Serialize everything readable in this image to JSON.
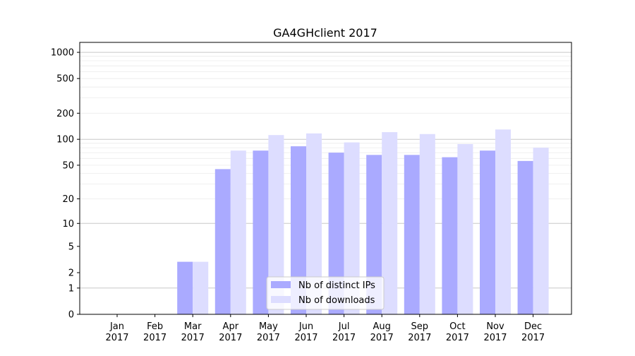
{
  "chart_data": {
    "type": "bar",
    "title": "GA4GHclient 2017",
    "xlabel": "",
    "ylabel": "",
    "yscale": "symlog",
    "ylim": [
      0,
      1300
    ],
    "yticks": [
      0,
      1,
      2,
      5,
      10,
      20,
      50,
      100,
      200,
      500,
      1000
    ],
    "ytick_labels": [
      "0",
      "1",
      "2",
      "5",
      "10",
      "20",
      "50",
      "100",
      "200",
      "500",
      "1000"
    ],
    "grid": true,
    "legend_position": "bottom-center",
    "categories": [
      "Jan\n2017",
      "Feb\n2017",
      "Mar\n2017",
      "Apr\n2017",
      "May\n2017",
      "Jun\n2017",
      "Jul\n2017",
      "Aug\n2017",
      "Sep\n2017",
      "Oct\n2017",
      "Nov\n2017",
      "Dec\n2017"
    ],
    "series": [
      {
        "name": "Nb of distinct IPs",
        "color": "#aaaaff",
        "values": [
          0,
          0,
          3,
          45,
          74,
          83,
          70,
          66,
          66,
          62,
          74,
          56
        ]
      },
      {
        "name": "Nb of downloads",
        "color": "#ddddff",
        "values": [
          0,
          0,
          3,
          74,
          112,
          117,
          92,
          121,
          115,
          88,
          130,
          80
        ]
      }
    ]
  }
}
